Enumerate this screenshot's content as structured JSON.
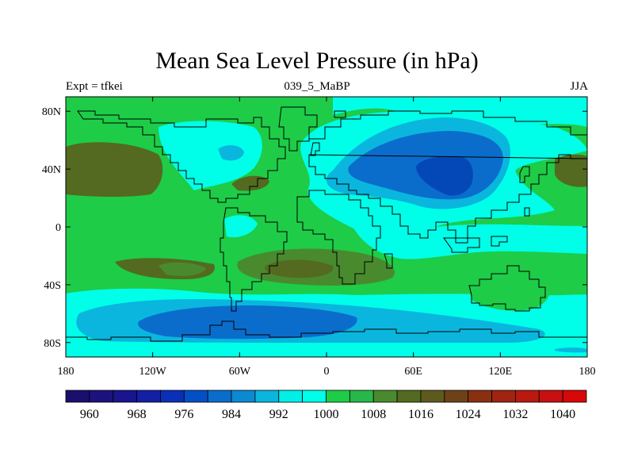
{
  "title": "Mean Sea Level Pressure (in hPa)",
  "subtitle_left": "Expt = tfkei",
  "subtitle_center": "039_5_MaBP",
  "subtitle_right": "JJA",
  "colors": {
    "band_960_ge": "#1f1470",
    "band_1000_1004": "#00ffe8",
    "band_996_1000": "#00ffe8",
    "band_992_996": "#00d2e0",
    "band_988_992": "#08a8d0",
    "band_984_988": "#0a70c8",
    "band_980_984": "#0448b8",
    "band_1004_1008": "#22c84e",
    "band_1008_1012": "#3cb848",
    "band_1012_1016": "#4a7a2a",
    "band_1016_1020": "#5a6020"
  },
  "chart_data": {
    "type": "heatmap",
    "title": "Mean Sea Level Pressure (in hPa)",
    "subtitle_left": "Expt = tfkei",
    "subtitle_center": "039_5_MaBP",
    "subtitle_right": "JJA",
    "xlim": [
      -180,
      180
    ],
    "ylim": [
      -90,
      90
    ],
    "x_ticks": [
      {
        "value": -180,
        "label": "180"
      },
      {
        "value": -120,
        "label": "120W"
      },
      {
        "value": -60,
        "label": "60W"
      },
      {
        "value": 0,
        "label": "0"
      },
      {
        "value": 60,
        "label": "60E"
      },
      {
        "value": 120,
        "label": "120E"
      },
      {
        "value": 180,
        "label": "180"
      }
    ],
    "y_ticks": [
      {
        "value": 80,
        "label": "80N"
      },
      {
        "value": 40,
        "label": "40N"
      },
      {
        "value": 0,
        "label": "0"
      },
      {
        "value": -40,
        "label": "40S"
      },
      {
        "value": -80,
        "label": "80S"
      }
    ],
    "colorbar": {
      "colors": [
        "#1a0f6e",
        "#1c127d",
        "#18158e",
        "#1420a3",
        "#0a30b8",
        "#0350c6",
        "#0a6dcc",
        "#0b8ad2",
        "#0ab6de",
        "#00f0e8",
        "#00ffe8",
        "#1ecc48",
        "#28b84a",
        "#4a8a2e",
        "#536a20",
        "#5e5a1c",
        "#6e4218",
        "#8a3010",
        "#a02410",
        "#b81a10",
        "#c81010",
        "#d80808"
      ],
      "labels": [
        {
          "value": 960,
          "label": "960"
        },
        {
          "value": 968,
          "label": "968"
        },
        {
          "value": 976,
          "label": "976"
        },
        {
          "value": 984,
          "label": "984"
        },
        {
          "value": 992,
          "label": "992"
        },
        {
          "value": 1000,
          "label": "1000"
        },
        {
          "value": 1008,
          "label": "1008"
        },
        {
          "value": 1016,
          "label": "1016"
        },
        {
          "value": 1024,
          "label": "1024"
        },
        {
          "value": 1032,
          "label": "1032"
        },
        {
          "value": 1040,
          "label": "1040"
        }
      ],
      "min": 956,
      "max": 1044
    },
    "regions": [
      {
        "name": "north-pacific-high",
        "level": 1016,
        "lon": -158,
        "lat": 37,
        "rx": 23,
        "ry": 17
      },
      {
        "name": "north-atlantic-high",
        "level": 1016,
        "lon": -40,
        "lat": 30,
        "rx": 12,
        "ry": 5
      },
      {
        "name": "south-pacific-high",
        "level": 1016,
        "lon": -100,
        "lat": -30,
        "rx": 12,
        "ry": 6
      },
      {
        "name": "south-atlantic-high",
        "level": 1016,
        "lon": -20,
        "lat": -28,
        "rx": 28,
        "ry": 9
      },
      {
        "name": "west-pacific-high",
        "level": 1016,
        "lon": 175,
        "lat": 37,
        "rx": 10,
        "ry": 10
      },
      {
        "name": "asian-low-outer",
        "level": 992,
        "lon": 75,
        "lat": 45,
        "rx": 55,
        "ry": 30
      },
      {
        "name": "asian-low-mid",
        "level": 988,
        "lon": 75,
        "lat": 40,
        "rx": 40,
        "ry": 20
      },
      {
        "name": "asian-low-core",
        "level": 984,
        "lon": 80,
        "lat": 40,
        "rx": 18,
        "ry": 13
      },
      {
        "name": "southern-ocean-low-outer",
        "level": 992,
        "lon": -40,
        "lat": -68,
        "rx": 130,
        "ry": 11
      },
      {
        "name": "southern-ocean-low-core",
        "level": 988,
        "lon": -75,
        "lat": -68,
        "rx": 70,
        "ry": 10
      }
    ]
  }
}
